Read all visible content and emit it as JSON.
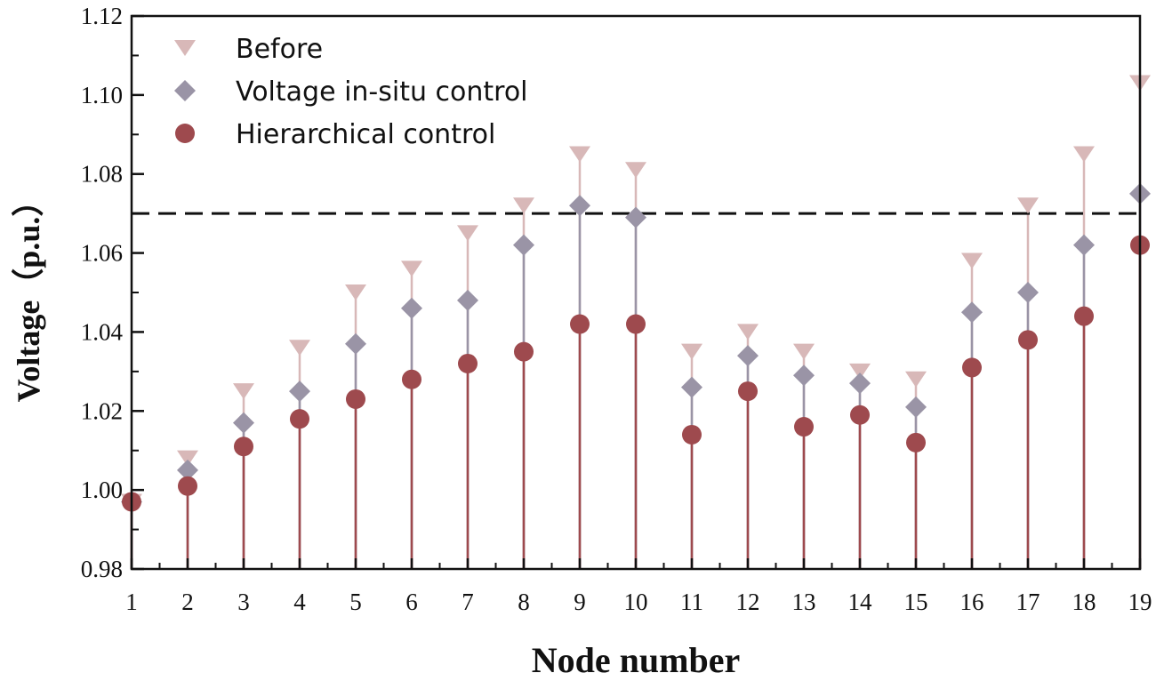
{
  "chart_data": {
    "type": "scatter",
    "title": "",
    "xlabel": "Node number",
    "ylabel": "Voltage（p.u.）",
    "x": [
      1,
      2,
      3,
      4,
      5,
      6,
      7,
      8,
      9,
      10,
      11,
      12,
      13,
      14,
      15,
      16,
      17,
      18,
      19
    ],
    "xlim": [
      1,
      19
    ],
    "ylim": [
      0.98,
      1.12
    ],
    "yticks": [
      "0.98",
      "1.00",
      "1.02",
      "1.04",
      "1.06",
      "1.08",
      "1.10",
      "1.12"
    ],
    "grid": false,
    "legend_position": "top-left",
    "reference_line": {
      "y": 1.07,
      "style": "dashed"
    },
    "series": [
      {
        "name": "Before",
        "marker": "triangle-down",
        "color": "#d8b8b8",
        "values": [
          0.997,
          1.008,
          1.025,
          1.036,
          1.05,
          1.056,
          1.065,
          1.072,
          1.085,
          1.081,
          1.035,
          1.04,
          1.035,
          1.03,
          1.028,
          1.058,
          1.072,
          1.085,
          1.103
        ]
      },
      {
        "name": "Voltage in-situ control",
        "marker": "diamond",
        "color": "#9a94a6",
        "values": [
          0.997,
          1.005,
          1.017,
          1.025,
          1.037,
          1.046,
          1.048,
          1.062,
          1.072,
          1.069,
          1.026,
          1.034,
          1.029,
          1.027,
          1.021,
          1.045,
          1.05,
          1.062,
          1.075
        ]
      },
      {
        "name": "Hierarchical control",
        "marker": "circle",
        "color": "#9e4a4e",
        "values": [
          0.997,
          1.001,
          1.011,
          1.018,
          1.023,
          1.028,
          1.032,
          1.035,
          1.042,
          1.042,
          1.014,
          1.025,
          1.016,
          1.019,
          1.012,
          1.031,
          1.038,
          1.044,
          1.062
        ]
      }
    ]
  }
}
